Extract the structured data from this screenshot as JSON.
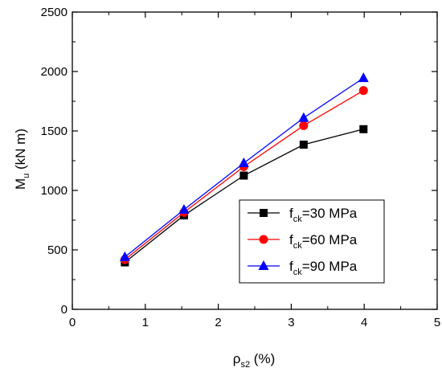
{
  "chart_data": {
    "type": "line",
    "xlabel": {
      "main": "ρ",
      "sub": "s2",
      "rest": " (%)"
    },
    "ylabel": {
      "main": "M",
      "sub": "u",
      "rest": " (kN m)"
    },
    "xlim": [
      0,
      5
    ],
    "ylim": [
      0,
      2500
    ],
    "xticks": [
      0,
      1,
      2,
      3,
      4,
      5
    ],
    "yticks": [
      0,
      500,
      1000,
      1500,
      2000,
      2500
    ],
    "xtick_labels": [
      "0",
      "1",
      "2",
      "3",
      "4",
      "5"
    ],
    "ytick_labels": [
      "0",
      "500",
      "1000",
      "1500",
      "2000",
      "2500"
    ],
    "grid": false,
    "legend_position": "bottom-right",
    "x": [
      0.72,
      1.53,
      2.35,
      3.17,
      3.99
    ],
    "series": [
      {
        "name": {
          "main": "f",
          "sub": "ck",
          "rest": "=30 MPa"
        },
        "color": "#000000",
        "marker": "square",
        "values": [
          395,
          790,
          1125,
          1385,
          1515
        ]
      },
      {
        "name": {
          "main": "f",
          "sub": "ck",
          "rest": "=60 MPa"
        },
        "color": "#ff0000",
        "marker": "circle",
        "values": [
          418,
          815,
          1200,
          1545,
          1840
        ]
      },
      {
        "name": {
          "main": "f",
          "sub": "ck",
          "rest": "=90 MPa"
        },
        "color": "#0000ff",
        "marker": "triangle",
        "values": [
          440,
          838,
          1230,
          1610,
          1945
        ]
      }
    ]
  }
}
